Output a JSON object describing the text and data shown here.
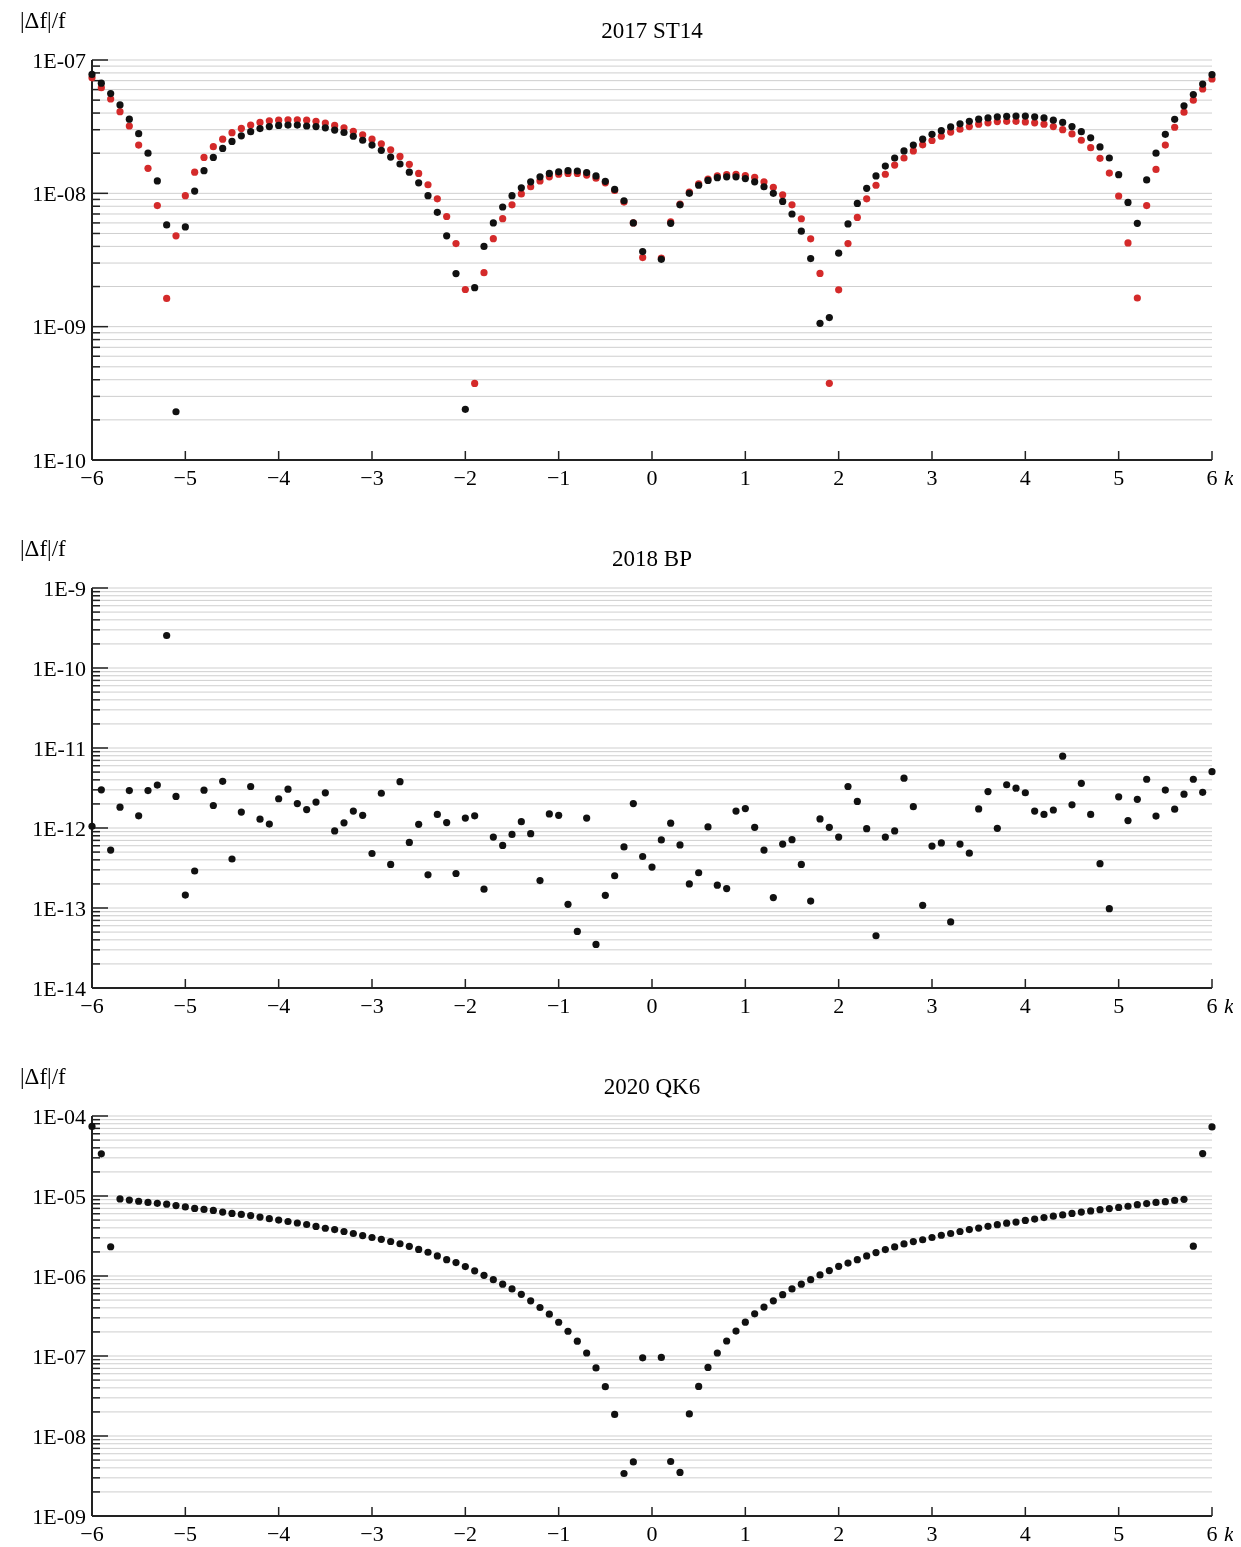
{
  "chart_data": [
    {
      "type": "scatter",
      "title": "2017 ST14",
      "ylabel": "|Δf|/f",
      "xlabel": "k",
      "log": "y",
      "grid": "y",
      "marker": "circle",
      "x": [
        -6,
        -5.9,
        -5.8,
        -5.7,
        -5.6,
        -5.5,
        -5.4,
        -5.3,
        -5.2,
        -5.1,
        -5,
        -4.9,
        -4.8,
        -4.7,
        -4.6,
        -4.5,
        -4.4,
        -4.3,
        -4.2,
        -4.1,
        -4,
        -3.9,
        -3.8,
        -3.7,
        -3.6,
        -3.5,
        -3.4,
        -3.3,
        -3.2,
        -3.1,
        -3,
        -2.9,
        -2.8,
        -2.7,
        -2.6,
        -2.5,
        -2.4,
        -2.3,
        -2.2,
        -2.1,
        -2,
        -1.9,
        -1.8,
        -1.7,
        -1.6,
        -1.5,
        -1.4,
        -1.3,
        -1.2,
        -1.1,
        -1,
        -0.9,
        -0.8,
        -0.7,
        -0.6,
        -0.5,
        -0.4,
        -0.3,
        -0.2,
        -0.1,
        0.1,
        0.2,
        0.3,
        0.4,
        0.5,
        0.6,
        0.7,
        0.8,
        0.9,
        1,
        1.1,
        1.2,
        1.3,
        1.4,
        1.5,
        1.6,
        1.7,
        1.8,
        1.9,
        2,
        2.1,
        2.2,
        2.3,
        2.4,
        2.5,
        2.6,
        2.7,
        2.8,
        2.9,
        3,
        3.1,
        3.2,
        3.3,
        3.4,
        3.5,
        3.6,
        3.7,
        3.8,
        3.9,
        4,
        4.1,
        4.2,
        4.3,
        4.4,
        4.5,
        4.6,
        4.7,
        4.8,
        4.9,
        5,
        5.1,
        5.2,
        5.3,
        5.4,
        5.5,
        5.6,
        5.7,
        5.8,
        5.9,
        6
      ],
      "series": [
        {
          "color": "#d42a2a",
          "values": [
            7.35e-08,
            6.2e-08,
            5.1e-08,
            4.1e-08,
            3.2e-08,
            2.3e-08,
            1.54e-08,
            8.1e-09,
            1.63e-09,
            4.8e-09,
            9.6e-09,
            1.44e-08,
            1.86e-08,
            2.24e-08,
            2.55e-08,
            2.85e-08,
            3.07e-08,
            3.25e-08,
            3.4e-08,
            3.5e-08,
            3.54e-08,
            3.56e-08,
            3.56e-08,
            3.54e-08,
            3.47e-08,
            3.37e-08,
            3.23e-08,
            3.1e-08,
            2.92e-08,
            2.75e-08,
            2.55e-08,
            2.35e-08,
            2.12e-08,
            1.89e-08,
            1.65e-08,
            1.41e-08,
            1.16e-08,
            9.1e-09,
            6.7e-09,
            4.2e-09,
            1.9e-09,
            3.75e-10,
            2.54e-09,
            4.57e-09,
            6.46e-09,
            8.2e-09,
            9.9e-09,
            1.12e-08,
            1.24e-08,
            1.33e-08,
            1.39e-08,
            1.41e-08,
            1.41e-08,
            1.37e-08,
            1.3e-08,
            1.2e-08,
            1.05e-08,
            8.6e-09,
            6e-09,
            3.3e-09,
            3.27e-09,
            6.1e-09,
            8.3e-09,
            1.02e-08,
            1.18e-08,
            1.28e-08,
            1.35e-08,
            1.38e-08,
            1.39e-08,
            1.36e-08,
            1.32e-08,
            1.22e-08,
            1.11e-08,
            9.75e-09,
            8.2e-09,
            6.45e-09,
            4.56e-09,
            2.51e-09,
            3.76e-10,
            1.89e-09,
            4.2e-09,
            6.6e-09,
            9.1e-09,
            1.15e-08,
            1.39e-08,
            1.63e-08,
            1.84e-08,
            2.08e-08,
            2.31e-08,
            2.49e-08,
            2.68e-08,
            2.88e-08,
            3.03e-08,
            3.17e-08,
            3.3e-08,
            3.38e-08,
            3.45e-08,
            3.47e-08,
            3.47e-08,
            3.43e-08,
            3.38e-08,
            3.3e-08,
            3.17e-08,
            3e-08,
            2.79e-08,
            2.5e-08,
            2.2e-08,
            1.83e-08,
            1.42e-08,
            9.55e-09,
            4.25e-09,
            1.64e-09,
            8.1e-09,
            1.51e-08,
            2.3e-08,
            3.13e-08,
            4.06e-08,
            5e-08,
            6.07e-08,
            7.2e-08
          ]
        },
        {
          "color": "#111111",
          "values": [
            7.8e-08,
            6.7e-08,
            5.6e-08,
            4.6e-08,
            3.6e-08,
            2.8e-08,
            2e-08,
            1.24e-08,
            5.8e-09,
            2.3e-10,
            5.6e-09,
            1.04e-08,
            1.48e-08,
            1.86e-08,
            2.17e-08,
            2.45e-08,
            2.7e-08,
            2.9e-08,
            3.06e-08,
            3.17e-08,
            3.23e-08,
            3.25e-08,
            3.25e-08,
            3.2e-08,
            3.17e-08,
            3.1e-08,
            2.98e-08,
            2.86e-08,
            2.68e-08,
            2.5e-08,
            2.3e-08,
            2.1e-08,
            1.87e-08,
            1.66e-08,
            1.44e-08,
            1.2e-08,
            9.6e-09,
            7.2e-09,
            4.8e-09,
            2.5e-09,
            2.4e-10,
            1.96e-09,
            4e-09,
            6e-09,
            7.9e-09,
            9.6e-09,
            1.1e-08,
            1.22e-08,
            1.33e-08,
            1.41e-08,
            1.45e-08,
            1.48e-08,
            1.47e-08,
            1.43e-08,
            1.35e-08,
            1.23e-08,
            1.07e-08,
            8.8e-09,
            6e-09,
            3.66e-09,
            3.2e-09,
            5.96e-09,
            8.2e-09,
            1e-08,
            1.15e-08,
            1.25e-08,
            1.31e-08,
            1.33e-08,
            1.33e-08,
            1.29e-08,
            1.22e-08,
            1.12e-08,
            1e-08,
            8.7e-09,
            7e-09,
            5.2e-09,
            3.24e-09,
            1.06e-09,
            1.17e-09,
            3.56e-09,
            5.9e-09,
            8.4e-09,
            1.09e-08,
            1.35e-08,
            1.6e-08,
            1.84e-08,
            2.08e-08,
            2.3e-08,
            2.55e-08,
            2.77e-08,
            2.95e-08,
            3.15e-08,
            3.32e-08,
            3.47e-08,
            3.6e-08,
            3.68e-08,
            3.75e-08,
            3.78e-08,
            3.8e-08,
            3.8e-08,
            3.75e-08,
            3.68e-08,
            3.54e-08,
            3.4e-08,
            3.17e-08,
            2.9e-08,
            2.61e-08,
            2.23e-08,
            1.84e-08,
            1.38e-08,
            8.55e-09,
            5.96e-09,
            1.26e-08,
            2e-08,
            2.77e-08,
            3.59e-08,
            4.53e-08,
            5.5e-08,
            6.6e-08,
            7.76e-08
          ]
        }
      ],
      "xlim": [
        -6,
        6
      ],
      "xticks": [
        {
          "value": -6,
          "label": "−6"
        },
        {
          "value": -5,
          "label": "−5"
        },
        {
          "value": -4,
          "label": "−4"
        },
        {
          "value": -3,
          "label": "−3"
        },
        {
          "value": -2,
          "label": "−2"
        },
        {
          "value": -1,
          "label": "−1"
        },
        0,
        1,
        2,
        3,
        4,
        5,
        6
      ],
      "ylim": [
        1e-10,
        1e-07
      ],
      "yticks": [
        {
          "value": 1e-10,
          "label": "1E-10"
        },
        {
          "value": 2e-10,
          "label": null
        },
        {
          "value": 3e-10,
          "label": null
        },
        {
          "value": 4e-10,
          "label": null
        },
        {
          "value": 5e-10,
          "label": null
        },
        {
          "value": 6e-10,
          "label": null
        },
        {
          "value": 7e-10,
          "label": null
        },
        {
          "value": 8e-10,
          "label": null
        },
        {
          "value": 9e-10,
          "label": null
        },
        {
          "value": 1e-09,
          "label": "1E-09"
        },
        {
          "value": 2e-09,
          "label": null
        },
        {
          "value": 3e-09,
          "label": null
        },
        {
          "value": 4e-09,
          "label": null
        },
        {
          "value": 5e-09,
          "label": null
        },
        {
          "value": 6e-09,
          "label": null
        },
        {
          "value": 7e-09,
          "label": null
        },
        {
          "value": 8e-09,
          "label": null
        },
        {
          "value": 9e-09,
          "label": null
        },
        {
          "value": 1e-08,
          "label": "1E-08"
        },
        {
          "value": 2e-08,
          "label": null
        },
        {
          "value": 3e-08,
          "label": null
        },
        {
          "value": 4e-08,
          "label": null
        },
        {
          "value": 5e-08,
          "label": null
        },
        {
          "value": 6e-08,
          "label": null
        },
        {
          "value": 7e-08,
          "label": null
        },
        {
          "value": 8e-08,
          "label": null
        },
        {
          "value": 9e-08,
          "label": null
        },
        {
          "value": 1e-07,
          "label": "1E-07"
        }
      ]
    },
    {
      "type": "scatter",
      "title": "2018 BP",
      "ylabel": "|Δf|/f",
      "xlabel": "k",
      "log": "y",
      "grid": "y",
      "marker": "circle",
      "x": [
        -6,
        -5.9,
        -5.8,
        -5.7,
        -5.6,
        -5.5,
        -5.4,
        -5.3,
        -5.2,
        -5.1,
        -5,
        -4.9,
        -4.8,
        -4.7,
        -4.6,
        -4.5,
        -4.4,
        -4.3,
        -4.2,
        -4.1,
        -4,
        -3.9,
        -3.8,
        -3.7,
        -3.6,
        -3.5,
        -3.4,
        -3.3,
        -3.2,
        -3.1,
        -3,
        -2.9,
        -2.8,
        -2.7,
        -2.6,
        -2.5,
        -2.4,
        -2.3,
        -2.2,
        -2.1,
        -2,
        -1.9,
        -1.8,
        -1.7,
        -1.6,
        -1.5,
        -1.4,
        -1.3,
        -1.2,
        -1.1,
        -1,
        -0.9,
        -0.8,
        -0.7,
        -0.6,
        -0.5,
        -0.4,
        -0.3,
        -0.2,
        -0.1,
        0,
        0.1,
        0.2,
        0.3,
        0.4,
        0.5,
        0.6,
        0.7,
        0.8,
        0.9,
        1,
        1.1,
        1.2,
        1.3,
        1.4,
        1.5,
        1.6,
        1.7,
        1.8,
        1.9,
        2,
        2.1,
        2.2,
        2.3,
        2.4,
        2.5,
        2.6,
        2.7,
        2.8,
        2.9,
        3,
        3.1,
        3.2,
        3.3,
        3.4,
        3.5,
        3.6,
        3.7,
        3.8,
        3.9,
        4,
        4.1,
        4.2,
        4.3,
        4.4,
        4.5,
        4.6,
        4.7,
        4.8,
        4.9,
        5,
        5.1,
        5.2,
        5.3,
        5.4,
        5.5,
        5.6,
        5.7,
        5.8,
        5.9,
        6
      ],
      "series": [
        {
          "color": "#111111",
          "values": [
            1.05e-12,
            3e-12,
            5.3e-13,
            1.82e-12,
            2.94e-12,
            1.42e-12,
            2.94e-12,
            3.44e-12,
            2.55e-10,
            2.48e-12,
            1.45e-13,
            2.9e-13,
            2.97e-12,
            1.91e-12,
            3.83e-12,
            4.1e-13,
            1.58e-12,
            3.3e-12,
            1.29e-12,
            1.12e-12,
            2.32e-12,
            3.06e-12,
            2.02e-12,
            1.7e-12,
            2.11e-12,
            2.75e-12,
            9.2e-13,
            1.16e-12,
            1.63e-12,
            1.44e-12,
            4.8e-13,
            2.72e-12,
            3.5e-13,
            3.79e-12,
            6.6e-13,
            1.11e-12,
            2.6e-13,
            1.48e-12,
            1.17e-12,
            2.7e-13,
            1.33e-12,
            1.42e-12,
            1.72e-13,
            7.7e-13,
            6.05e-13,
            8.3e-13,
            1.2e-12,
            8.5e-13,
            2.2e-13,
            1.5e-12,
            1.44e-12,
            1.11e-13,
            5.1e-14,
            1.33e-12,
            3.5e-14,
            1.44e-13,
            2.53e-13,
            5.8e-13,
            2.02e-12,
            4.4e-13,
            3.25e-13,
            7.1e-13,
            1.15e-12,
            6.15e-13,
            2e-13,
            2.76e-13,
            1.03e-12,
            1.93e-13,
            1.75e-13,
            1.63e-12,
            1.75e-12,
            1.02e-12,
            5.3e-13,
            1.35e-13,
            6.3e-13,
            7.15e-13,
            3.5e-13,
            1.22e-13,
            1.3e-12,
            1.02e-12,
            7.7e-13,
            3.3e-12,
            2.15e-12,
            9.8e-13,
            4.5e-14,
            7.7e-13,
            9.2e-13,
            4.2e-12,
            1.85e-12,
            1.08e-13,
            5.95e-13,
            6.5e-13,
            6.7e-14,
            6.3e-13,
            4.85e-13,
            1.73e-12,
            2.85e-12,
            9.9e-13,
            3.47e-12,
            3.15e-12,
            2.76e-12,
            1.63e-12,
            1.48e-12,
            1.68e-12,
            7.9e-12,
            1.95e-12,
            3.62e-12,
            1.48e-12,
            3.58e-13,
            9.8e-14,
            2.45e-12,
            1.24e-12,
            2.28e-12,
            4.07e-12,
            1.41e-12,
            2.98e-12,
            1.72e-12,
            2.65e-12,
            4.07e-12,
            2.79e-12,
            5.06e-12
          ]
        }
      ],
      "xlim": [
        -6,
        6
      ],
      "xticks": [
        {
          "value": -6,
          "label": "−6"
        },
        {
          "value": -5,
          "label": "−5"
        },
        {
          "value": -4,
          "label": "−4"
        },
        {
          "value": -3,
          "label": "−3"
        },
        {
          "value": -2,
          "label": "−2"
        },
        {
          "value": -1,
          "label": "−1"
        },
        0,
        1,
        2,
        3,
        4,
        5,
        6
      ],
      "ylim": [
        1e-14,
        1e-09
      ],
      "yticks": [
        {
          "value": 1e-14,
          "label": "1E-14"
        },
        {
          "value": 2e-14,
          "label": null
        },
        {
          "value": 3e-14,
          "label": null
        },
        {
          "value": 4e-14,
          "label": null
        },
        {
          "value": 5e-14,
          "label": null
        },
        {
          "value": 6e-14,
          "label": null
        },
        {
          "value": 7e-14,
          "label": null
        },
        {
          "value": 8e-14,
          "label": null
        },
        {
          "value": 9e-14,
          "label": null
        },
        {
          "value": 1e-13,
          "label": "1E-13"
        },
        {
          "value": 2e-13,
          "label": null
        },
        {
          "value": 3e-13,
          "label": null
        },
        {
          "value": 4e-13,
          "label": null
        },
        {
          "value": 5e-13,
          "label": null
        },
        {
          "value": 6e-13,
          "label": null
        },
        {
          "value": 7e-13,
          "label": null
        },
        {
          "value": 8e-13,
          "label": null
        },
        {
          "value": 9e-13,
          "label": null
        },
        {
          "value": 1e-12,
          "label": "1E-12"
        },
        {
          "value": 2e-12,
          "label": null
        },
        {
          "value": 3e-12,
          "label": null
        },
        {
          "value": 4e-12,
          "label": null
        },
        {
          "value": 5e-12,
          "label": null
        },
        {
          "value": 6e-12,
          "label": null
        },
        {
          "value": 7e-12,
          "label": null
        },
        {
          "value": 8e-12,
          "label": null
        },
        {
          "value": 9e-12,
          "label": null
        },
        {
          "value": 1e-11,
          "label": "1E-11"
        },
        {
          "value": 2e-11,
          "label": null
        },
        {
          "value": 3e-11,
          "label": null
        },
        {
          "value": 4e-11,
          "label": null
        },
        {
          "value": 5e-11,
          "label": null
        },
        {
          "value": 6e-11,
          "label": null
        },
        {
          "value": 7e-11,
          "label": null
        },
        {
          "value": 8e-11,
          "label": null
        },
        {
          "value": 9e-11,
          "label": null
        },
        {
          "value": 1e-10,
          "label": "1E-10"
        },
        {
          "value": 2e-10,
          "label": null
        },
        {
          "value": 3e-10,
          "label": null
        },
        {
          "value": 4e-10,
          "label": null
        },
        {
          "value": 5e-10,
          "label": null
        },
        {
          "value": 6e-10,
          "label": null
        },
        {
          "value": 7e-10,
          "label": null
        },
        {
          "value": 8e-10,
          "label": null
        },
        {
          "value": 9e-10,
          "label": null
        },
        {
          "value": 1e-09,
          "label": "1E-9"
        }
      ]
    },
    {
      "type": "scatter",
      "title": "2020 QK6",
      "ylabel": "|Δf|/f",
      "xlabel": "k",
      "log": "y",
      "grid": "y",
      "marker": "circle",
      "x": [
        -6,
        -5.9,
        -5.8,
        -5.7,
        -5.6,
        -5.5,
        -5.4,
        -5.3,
        -5.2,
        -5.1,
        -5,
        -4.9,
        -4.8,
        -4.7,
        -4.6,
        -4.5,
        -4.4,
        -4.3,
        -4.2,
        -4.1,
        -4,
        -3.9,
        -3.8,
        -3.7,
        -3.6,
        -3.5,
        -3.4,
        -3.3,
        -3.2,
        -3.1,
        -3,
        -2.9,
        -2.8,
        -2.7,
        -2.6,
        -2.5,
        -2.4,
        -2.3,
        -2.2,
        -2.1,
        -2,
        -1.9,
        -1.8,
        -1.7,
        -1.6,
        -1.5,
        -1.4,
        -1.3,
        -1.2,
        -1.1,
        -1,
        -0.9,
        -0.8,
        -0.7,
        -0.6,
        -0.5,
        -0.4,
        -0.3,
        -0.2,
        -0.1,
        0.1,
        0.2,
        0.3,
        0.4,
        0.5,
        0.6,
        0.7,
        0.8,
        0.9,
        1,
        1.1,
        1.2,
        1.3,
        1.4,
        1.5,
        1.6,
        1.7,
        1.8,
        1.9,
        2,
        2.1,
        2.2,
        2.3,
        2.4,
        2.5,
        2.6,
        2.7,
        2.8,
        2.9,
        3,
        3.1,
        3.2,
        3.3,
        3.4,
        3.5,
        3.6,
        3.7,
        3.8,
        3.9,
        4,
        4.1,
        4.2,
        4.3,
        4.4,
        4.5,
        4.6,
        4.7,
        4.8,
        4.9,
        5,
        5.1,
        5.2,
        5.3,
        5.4,
        5.5,
        5.6,
        5.7,
        5.8,
        5.9,
        6
      ],
      "series": [
        {
          "color": "#111111",
          "values": [
            7.4e-05,
            3.37e-05,
            2.32e-06,
            9.2e-06,
            8.9e-06,
            8.6e-06,
            8.3e-06,
            8.1e-06,
            7.9e-06,
            7.6e-06,
            7.3e-06,
            7e-06,
            6.8e-06,
            6.6e-06,
            6.3e-06,
            6.06e-06,
            5.88e-06,
            5.7e-06,
            5.45e-06,
            5.2e-06,
            5e-06,
            4.8e-06,
            4.6e-06,
            4.4e-06,
            4.17e-06,
            3.95e-06,
            3.8e-06,
            3.6e-06,
            3.4e-06,
            3.2e-06,
            3.03e-06,
            2.87e-06,
            2.7e-06,
            2.53e-06,
            2.35e-06,
            2.15e-06,
            1.98e-06,
            1.78e-06,
            1.6e-06,
            1.47e-06,
            1.31e-06,
            1.16e-06,
            1.02e-06,
            9e-07,
            7.9e-07,
            6.9e-07,
            5.9e-07,
            4.9e-07,
            4.04e-07,
            3.33e-07,
            2.64e-07,
            2.04e-07,
            1.53e-07,
            1.09e-07,
            7.1e-08,
            4.13e-08,
            1.86e-08,
            3.4e-09,
            4.74e-09,
            9.5e-08,
            9.6e-08,
            4.8e-09,
            3.5e-09,
            1.89e-08,
            4.17e-08,
            7.2e-08,
            1.09e-07,
            1.54e-07,
            2.05e-07,
            2.65e-07,
            3.37e-07,
            4.09e-07,
            4.9e-07,
            5.85e-07,
            6.9e-07,
            7.9e-07,
            9e-07,
            1.03e-06,
            1.17e-06,
            1.32e-06,
            1.45e-06,
            1.6e-06,
            1.78e-06,
            1.96e-06,
            2.14e-06,
            2.31e-06,
            2.52e-06,
            2.69e-06,
            2.84e-06,
            3.03e-06,
            3.23e-06,
            3.4e-06,
            3.6e-06,
            3.8e-06,
            3.97e-06,
            4.18e-06,
            4.38e-06,
            4.58e-06,
            4.72e-06,
            4.95e-06,
            5.15e-06,
            5.37e-06,
            5.6e-06,
            5.8e-06,
            6.05e-06,
            6.3e-06,
            6.5e-06,
            6.75e-06,
            6.97e-06,
            7.2e-06,
            7.45e-06,
            7.8e-06,
            8.04e-06,
            8.3e-06,
            8.5e-06,
            8.8e-06,
            9.1e-06,
            2.36e-06,
            3.39e-05,
            7.3e-05
          ]
        }
      ],
      "xlim": [
        -6,
        6
      ],
      "xticks": [
        {
          "value": -6,
          "label": "−6"
        },
        {
          "value": -5,
          "label": "−5"
        },
        {
          "value": -4,
          "label": "−4"
        },
        {
          "value": -3,
          "label": "−3"
        },
        {
          "value": -2,
          "label": "−2"
        },
        {
          "value": -1,
          "label": "−1"
        },
        0,
        1,
        2,
        3,
        4,
        5,
        6
      ],
      "ylim": [
        1e-09,
        0.0001
      ],
      "yticks": [
        {
          "value": 1e-09,
          "label": "1E-09"
        },
        {
          "value": 2e-09,
          "label": null
        },
        {
          "value": 3e-09,
          "label": null
        },
        {
          "value": 4e-09,
          "label": null
        },
        {
          "value": 5e-09,
          "label": null
        },
        {
          "value": 6e-09,
          "label": null
        },
        {
          "value": 7e-09,
          "label": null
        },
        {
          "value": 8e-09,
          "label": null
        },
        {
          "value": 9e-09,
          "label": null
        },
        {
          "value": 1e-08,
          "label": "1E-08"
        },
        {
          "value": 2e-08,
          "label": null
        },
        {
          "value": 3e-08,
          "label": null
        },
        {
          "value": 4e-08,
          "label": null
        },
        {
          "value": 5e-08,
          "label": null
        },
        {
          "value": 6e-08,
          "label": null
        },
        {
          "value": 7e-08,
          "label": null
        },
        {
          "value": 8e-08,
          "label": null
        },
        {
          "value": 9e-08,
          "label": null
        },
        {
          "value": 1e-07,
          "label": "1E-07"
        },
        {
          "value": 2e-07,
          "label": null
        },
        {
          "value": 3e-07,
          "label": null
        },
        {
          "value": 4e-07,
          "label": null
        },
        {
          "value": 5e-07,
          "label": null
        },
        {
          "value": 6e-07,
          "label": null
        },
        {
          "value": 7e-07,
          "label": null
        },
        {
          "value": 8e-07,
          "label": null
        },
        {
          "value": 9e-07,
          "label": null
        },
        {
          "value": 1e-06,
          "label": "1E-06"
        },
        {
          "value": 2e-06,
          "label": null
        },
        {
          "value": 3e-06,
          "label": null
        },
        {
          "value": 4e-06,
          "label": null
        },
        {
          "value": 5e-06,
          "label": null
        },
        {
          "value": 6e-06,
          "label": null
        },
        {
          "value": 7e-06,
          "label": null
        },
        {
          "value": 8e-06,
          "label": null
        },
        {
          "value": 9e-06,
          "label": null
        },
        {
          "value": 1e-05,
          "label": "1E-05"
        },
        {
          "value": 2e-05,
          "label": null
        },
        {
          "value": 3e-05,
          "label": null
        },
        {
          "value": 4e-05,
          "label": null
        },
        {
          "value": 5e-05,
          "label": null
        },
        {
          "value": 6e-05,
          "label": null
        },
        {
          "value": 7e-05,
          "label": null
        },
        {
          "value": 8e-05,
          "label": null
        },
        {
          "value": 9e-05,
          "label": null
        },
        {
          "value": 0.0001,
          "label": "1E-04"
        }
      ]
    }
  ]
}
